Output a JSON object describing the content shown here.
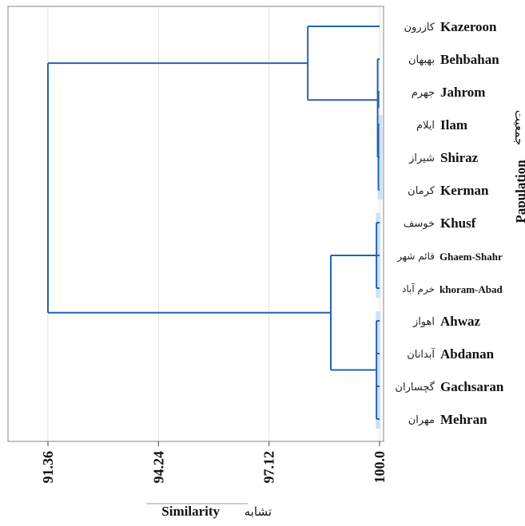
{
  "chart_data": {
    "type": "dendrogram",
    "orientation": "horizontal",
    "xlabel": "Similarity",
    "xlabel_fa": "تشابه",
    "ylabel": "Papulation",
    "ylabel_fa": "جمعیت",
    "xlim": [
      90.5,
      100.0
    ],
    "x_ticks": [
      {
        "value": 91.36,
        "label": "91.36"
      },
      {
        "value": 94.24,
        "label": "94.24"
      },
      {
        "value": 97.12,
        "label": "97.12"
      },
      {
        "value": 100.0,
        "label": "100.0"
      }
    ],
    "grid": true,
    "line_color": "#2563ad",
    "highlight_color": "#cfe2f5",
    "leaves": [
      {
        "name": "Kazeroon",
        "name_fa": "کازرون"
      },
      {
        "name": "Behbahan",
        "name_fa": "بهبهان"
      },
      {
        "name": "Jahrom",
        "name_fa": "جهرم"
      },
      {
        "name": "Ilam",
        "name_fa": "ایلام"
      },
      {
        "name": "Shiraz",
        "name_fa": "شیراز"
      },
      {
        "name": "Kerman",
        "name_fa": "کرمان"
      },
      {
        "name": "Khusf",
        "name_fa": "خوسف"
      },
      {
        "name": "Ghaem-Shahr",
        "name_fa": "قائم شهر"
      },
      {
        "name": "khoram-Abad",
        "name_fa": "خرم آباد"
      },
      {
        "name": "Ahwaz",
        "name_fa": "اهواز"
      },
      {
        "name": "Abdanan",
        "name_fa": "آبدانان"
      },
      {
        "name": "Gachsaran",
        "name_fa": "گچساران"
      },
      {
        "name": "Mehran",
        "name_fa": "مهران"
      }
    ],
    "merges": [
      {
        "id": "c1",
        "children": [
          3,
          4,
          5
        ],
        "similarity": 99.97
      },
      {
        "id": "c2",
        "children": [
          1,
          "c1"
        ],
        "similarity": 99.95
      },
      {
        "id": "c3",
        "children": [
          2,
          "c2"
        ],
        "similarity": 99.97
      },
      {
        "id": "c4",
        "children": [
          6,
          7,
          8
        ],
        "similarity": 99.92
      },
      {
        "id": "c5",
        "children": [
          9,
          10,
          11,
          12
        ],
        "similarity": 99.92
      },
      {
        "id": "c6",
        "children": [
          "c4",
          "c5"
        ],
        "similarity": 98.73
      },
      {
        "id": "c7",
        "children": [
          0,
          "c3"
        ],
        "similarity": 98.13
      },
      {
        "id": "c8",
        "children": [
          "c7",
          "c6"
        ],
        "similarity": 91.36
      }
    ]
  }
}
